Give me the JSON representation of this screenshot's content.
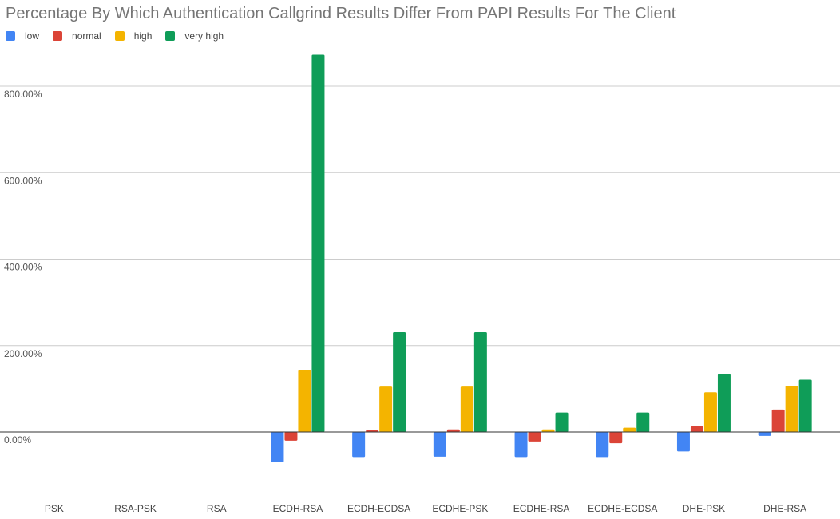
{
  "chart_data": {
    "type": "bar",
    "title": "Percentage By Which Authentication Callgrind Results Differ From PAPI Results For The Client",
    "xlabel": "",
    "ylabel": "",
    "categories": [
      "PSK",
      "RSA-PSK",
      "RSA",
      "ECDH-RSA",
      "ECDH-ECDSA",
      "ECDHE-PSK",
      "ECDHE-RSA",
      "ECDHE-ECDSA",
      "DHE-PSK",
      "DHE-RSA"
    ],
    "series": [
      {
        "name": "low",
        "color": "#4285f4",
        "values": [
          null,
          null,
          null,
          -70,
          -58,
          -57,
          -58,
          -58,
          -45,
          -9
        ]
      },
      {
        "name": "normal",
        "color": "#db4437",
        "values": [
          null,
          null,
          null,
          -20,
          4,
          6,
          -22,
          -26,
          13,
          52
        ]
      },
      {
        "name": "high",
        "color": "#f4b400",
        "values": [
          null,
          null,
          null,
          143,
          105,
          105,
          6,
          10,
          92,
          107
        ]
      },
      {
        "name": "very high",
        "color": "#0f9d58",
        "values": [
          null,
          null,
          null,
          873,
          231,
          231,
          45,
          45,
          134,
          121
        ]
      }
    ],
    "ylim": [
      -130,
      880
    ],
    "yticks": [
      0,
      200,
      400,
      600,
      800
    ],
    "ytick_labels": [
      "0.00%",
      "200.00%",
      "400.00%",
      "600.00%",
      "800.00%"
    ],
    "grid": true,
    "legend_position": "top-left"
  }
}
